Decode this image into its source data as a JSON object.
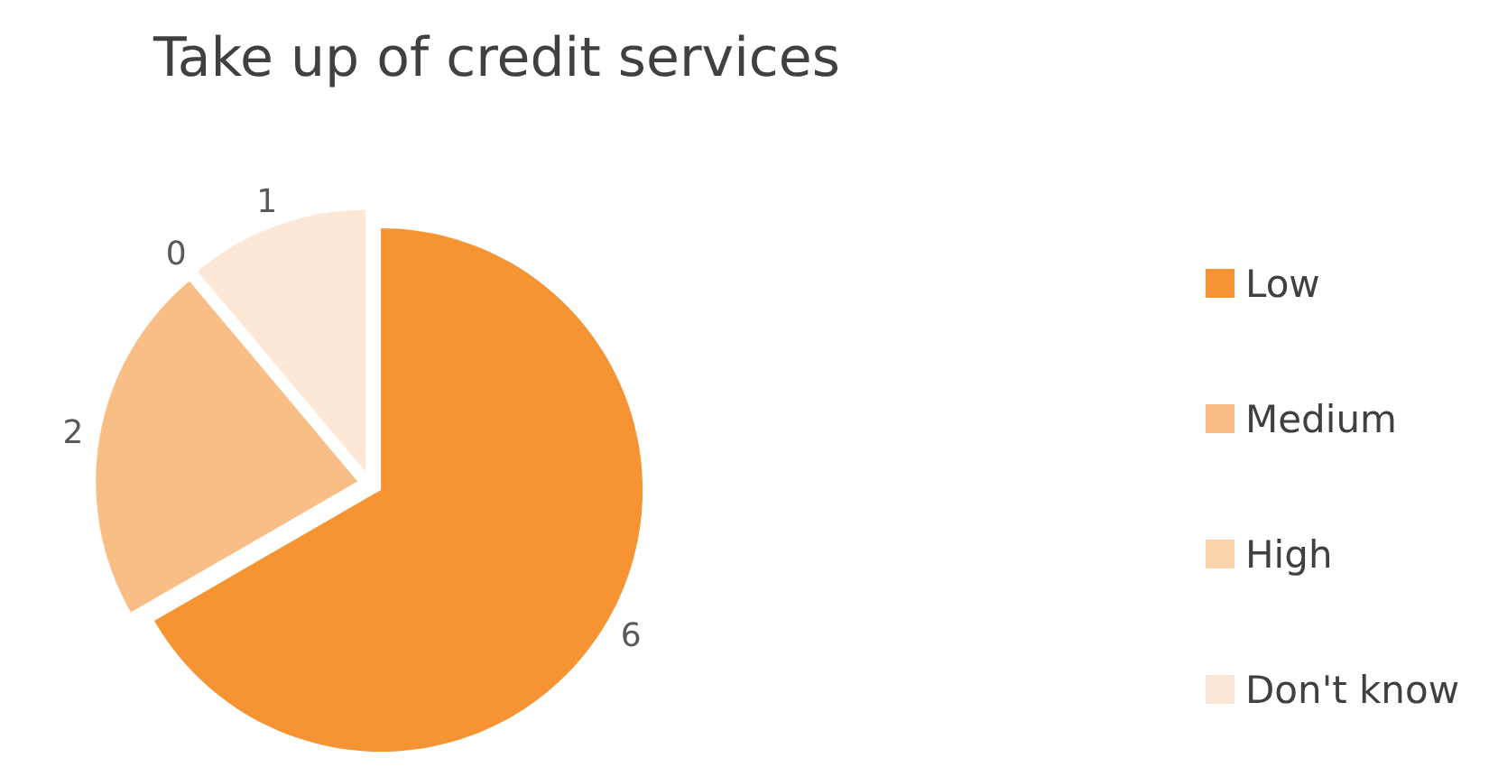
{
  "chart_data": {
    "type": "pie",
    "title": "Take up of credit services",
    "categories": [
      "Low",
      "Medium",
      "High",
      "Don't know"
    ],
    "values": [
      6,
      2,
      0,
      1
    ],
    "colors": [
      "#f69434",
      "#f9be86",
      "#fbd3ac",
      "#fde7d6"
    ],
    "value_labels": [
      "6",
      "2",
      "0",
      "1"
    ],
    "legend": "right"
  }
}
